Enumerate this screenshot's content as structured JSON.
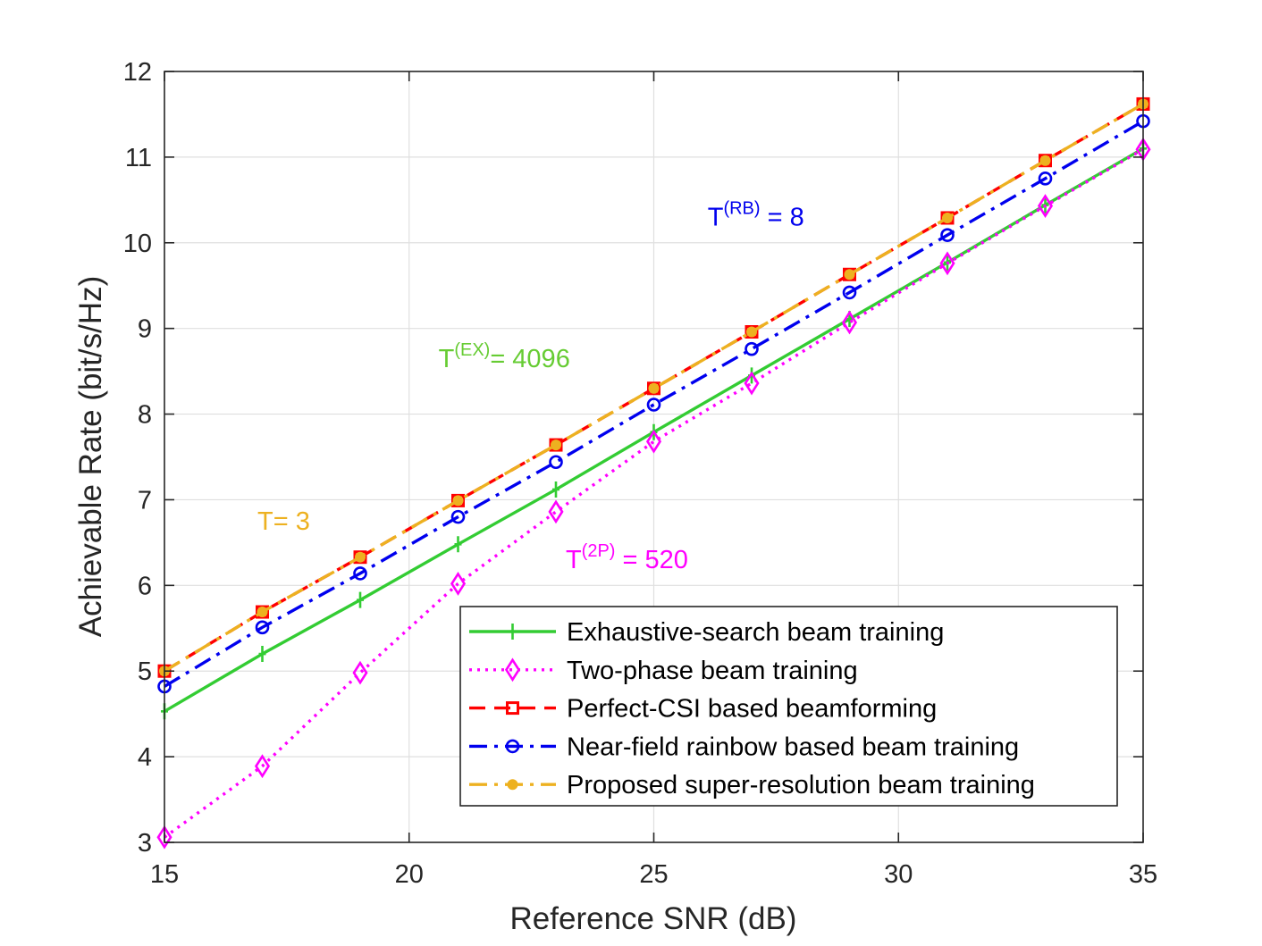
{
  "chart_data": {
    "type": "line",
    "title": "",
    "xlabel": "Reference SNR (dB)",
    "ylabel": "Achievable Rate (bit/s/Hz)",
    "xlim": [
      15,
      35
    ],
    "ylim": [
      3,
      12
    ],
    "xticks": [
      15,
      20,
      25,
      30,
      35
    ],
    "yticks": [
      3,
      4,
      5,
      6,
      7,
      8,
      9,
      10,
      11,
      12
    ],
    "grid": true,
    "legend_position": "bottom-right",
    "x": [
      15,
      17,
      19,
      21,
      23,
      25,
      27,
      29,
      31,
      33,
      35
    ],
    "series": [
      {
        "name": "Exhaustive-search beam training",
        "color": "#33cc33",
        "line": "solid",
        "marker": "plus",
        "values": [
          4.53,
          5.2,
          5.83,
          6.48,
          7.12,
          7.79,
          8.45,
          9.11,
          9.77,
          10.44,
          11.1
        ]
      },
      {
        "name": "Two-phase beam training",
        "color": "#ff00ff",
        "line": "dotted",
        "marker": "diamond",
        "values": [
          3.06,
          3.89,
          4.98,
          6.02,
          6.86,
          7.68,
          8.36,
          9.07,
          9.76,
          10.43,
          11.09
        ]
      },
      {
        "name": "Perfect-CSI based beamforming",
        "color": "#ff0000",
        "line": "dashed",
        "marker": "square",
        "values": [
          5.0,
          5.69,
          6.33,
          6.99,
          7.64,
          8.3,
          8.96,
          9.63,
          10.29,
          10.96,
          11.62
        ]
      },
      {
        "name": "Near-field rainbow based beam training",
        "color": "#0000ee",
        "line": "dashdot",
        "marker": "circle",
        "values": [
          4.82,
          5.51,
          6.14,
          6.8,
          7.44,
          8.11,
          8.76,
          9.42,
          10.09,
          10.75,
          11.42
        ]
      },
      {
        "name": "Proposed super-resolution beam training",
        "color": "#edb120",
        "line": "dashdot",
        "marker": "dot",
        "values": [
          5.0,
          5.69,
          6.33,
          6.99,
          7.64,
          8.3,
          8.96,
          9.63,
          10.29,
          10.96,
          11.62
        ]
      }
    ],
    "annotations": [
      {
        "name": "annotation-rb",
        "base": "T",
        "sup": "(RB)",
        "suffix": " = 8",
        "color": "#0000ee",
        "x": 26.1,
        "y": 10.2
      },
      {
        "name": "annotation-ex",
        "base": "T",
        "sup": "(EX)",
        "suffix": "= 4096",
        "color": "#66cc33",
        "x": 20.6,
        "y": 8.55
      },
      {
        "name": "annotation-t3",
        "base": "T= 3",
        "sup": "",
        "suffix": "",
        "color": "#edb120",
        "x": 16.9,
        "y": 6.65
      },
      {
        "name": "annotation-2p",
        "base": "T",
        "sup": "(2P)",
        "suffix": " = 520",
        "color": "#ff00ff",
        "x": 23.2,
        "y": 6.2
      }
    ]
  }
}
